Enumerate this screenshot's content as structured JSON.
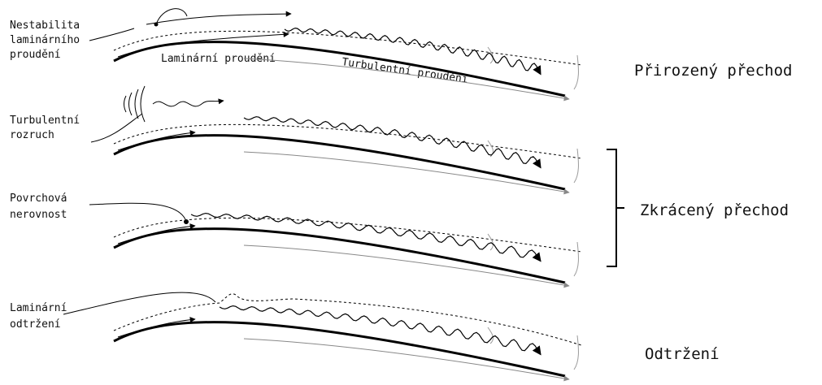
{
  "panels": [
    {
      "label": [
        "Nestabilita",
        "laminárního",
        "proudění"
      ]
    },
    {
      "label": [
        "Turbulentní",
        "rozruch"
      ]
    },
    {
      "label": [
        "Povrchová",
        "nerovnost"
      ]
    },
    {
      "label": [
        "Laminární",
        "odtržení"
      ]
    }
  ],
  "flow_labels": {
    "laminar": "Laminární proudění",
    "turbulent": "Turbulentní proudění"
  },
  "regimes": [
    "Přirozený přechod",
    "Zkrácený přechod",
    "Odtržení"
  ]
}
